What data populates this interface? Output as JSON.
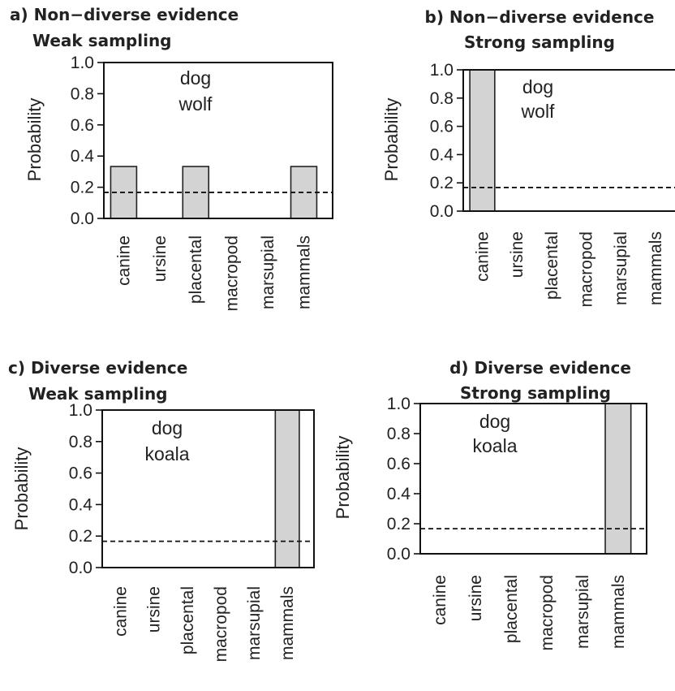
{
  "chart_data": [
    {
      "type": "bar",
      "title": "a) Non−diverse evidence",
      "subtitle": "Weak sampling",
      "ylabel": "Probability",
      "ylim": [
        0,
        1
      ],
      "yticks": [
        "0.0",
        "0.2",
        "0.4",
        "0.6",
        "0.8",
        "1.0"
      ],
      "categories": [
        "canine",
        "ursine",
        "placental",
        "macropod",
        "marsupial",
        "mammals"
      ],
      "values": [
        0.333,
        0,
        0.333,
        0,
        0,
        0.333
      ],
      "reference_line": 0.167,
      "annotation": [
        "dog",
        "wolf"
      ],
      "bar_color": "#d3d3d3"
    },
    {
      "type": "bar",
      "title": "b) Non−diverse evidence",
      "subtitle": "Strong sampling",
      "ylabel": "Probability",
      "ylim": [
        0,
        1
      ],
      "yticks": [
        "0.0",
        "0.2",
        "0.4",
        "0.6",
        "0.8",
        "1.0"
      ],
      "categories": [
        "canine",
        "ursine",
        "placental",
        "macropod",
        "marsupial",
        "mammals"
      ],
      "values": [
        1.0,
        0,
        0,
        0,
        0,
        0
      ],
      "reference_line": 0.167,
      "annotation": [
        "dog",
        "wolf"
      ],
      "bar_color": "#d3d3d3"
    },
    {
      "type": "bar",
      "title": "c) Diverse evidence",
      "subtitle": "Weak sampling",
      "ylabel": "Probability",
      "ylim": [
        0,
        1
      ],
      "yticks": [
        "0.0",
        "0.2",
        "0.4",
        "0.6",
        "0.8",
        "1.0"
      ],
      "categories": [
        "canine",
        "ursine",
        "placental",
        "macropod",
        "marsupial",
        "mammals"
      ],
      "values": [
        0,
        0,
        0,
        0,
        0,
        1.0
      ],
      "reference_line": 0.167,
      "annotation": [
        "dog",
        "koala"
      ],
      "bar_color": "#d3d3d3"
    },
    {
      "type": "bar",
      "title": "d) Diverse evidence",
      "subtitle": "Strong sampling",
      "ylabel": "Probability",
      "ylim": [
        0,
        1
      ],
      "yticks": [
        "0.0",
        "0.2",
        "0.4",
        "0.6",
        "0.8",
        "1.0"
      ],
      "categories": [
        "canine",
        "ursine",
        "placental",
        "macropod",
        "marsupial",
        "mammals"
      ],
      "values": [
        0,
        0,
        0,
        0,
        0,
        1.0
      ],
      "reference_line": 0.167,
      "annotation": [
        "dog",
        "koala"
      ],
      "bar_color": "#d3d3d3"
    }
  ]
}
